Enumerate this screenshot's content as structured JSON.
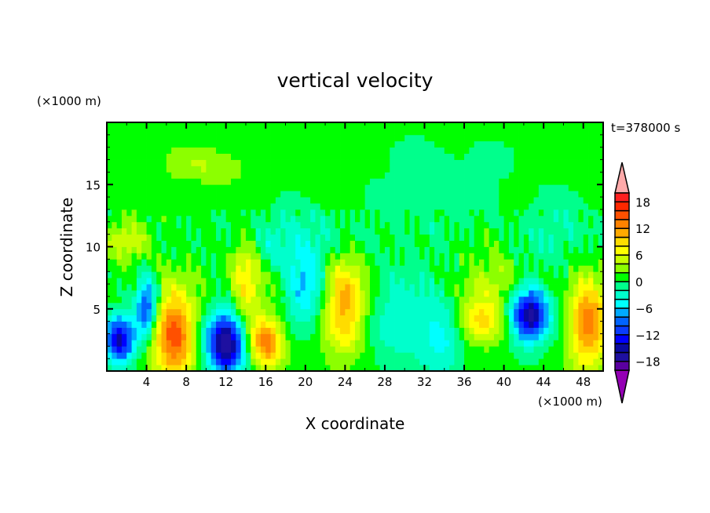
{
  "chart_data": {
    "type": "heatmap",
    "title": "vertical velocity",
    "xlabel": "X coordinate",
    "ylabel": "Z coordinate",
    "x_unit": "(×1000 m)",
    "y_unit": "(×1000 m)",
    "annotation": "t=378000 s",
    "xlim": [
      0,
      50
    ],
    "ylim": [
      0,
      20
    ],
    "x_ticks": [
      4,
      8,
      12,
      16,
      20,
      24,
      28,
      32,
      36,
      40,
      44,
      48
    ],
    "y_ticks": [
      5,
      10,
      15
    ],
    "colorbar": {
      "levels": [
        -20,
        -18,
        -16,
        -14,
        -12,
        -10,
        -8,
        -6,
        -4,
        -2,
        0,
        2,
        4,
        6,
        8,
        10,
        12,
        14,
        16,
        18,
        20
      ],
      "colors": [
        "#5a00a0",
        "#1e10a0",
        "#0a0aa0",
        "#0000ff",
        "#0a3cff",
        "#0064ff",
        "#00aaff",
        "#00ffff",
        "#00ffcc",
        "#00ff8c",
        "#00ff00",
        "#8cff00",
        "#c8ff00",
        "#ffff00",
        "#ffdc00",
        "#ffaa00",
        "#ff8200",
        "#ff5000",
        "#ff2800",
        "#ff2020"
      ],
      "over_color": "#ffaaaa",
      "under_color": "#9400b4",
      "tick_labels": [
        "18",
        "12",
        "6",
        "0",
        "−6",
        "−12",
        "−18"
      ],
      "tick_values": [
        18,
        12,
        6,
        0,
        -6,
        -12,
        -18
      ]
    },
    "field_features": [
      {
        "x": 1.3,
        "z": 2.5,
        "w": -15,
        "sx": 1.1,
        "sz": 1.4
      },
      {
        "x": 4.0,
        "z": 5.0,
        "w": -12,
        "sx": 0.8,
        "sz": 1.6
      },
      {
        "x": 6.8,
        "z": 2.8,
        "w": 14,
        "sx": 1.5,
        "sz": 2.6
      },
      {
        "x": 12.0,
        "z": 2.2,
        "w": -19,
        "sx": 1.4,
        "sz": 1.8
      },
      {
        "x": 16.0,
        "z": 2.2,
        "w": 12,
        "sx": 1.2,
        "sz": 1.5
      },
      {
        "x": 14.0,
        "z": 7.5,
        "w": 8,
        "sx": 1.1,
        "sz": 2.5
      },
      {
        "x": 24.0,
        "z": 5.5,
        "w": 10,
        "sx": 1.5,
        "sz": 3.0
      },
      {
        "x": 20.0,
        "z": 6.5,
        "w": -7,
        "sx": 1.3,
        "sz": 2.0
      },
      {
        "x": 37.5,
        "z": 4.0,
        "w": 8,
        "sx": 2.0,
        "sz": 1.2
      },
      {
        "x": 42.5,
        "z": 4.5,
        "w": -18,
        "sx": 1.4,
        "sz": 1.5
      },
      {
        "x": 48.5,
        "z": 4.0,
        "w": 12,
        "sx": 1.4,
        "sz": 2.6
      },
      {
        "x": 30.0,
        "z": 4.0,
        "w": -4,
        "sx": 3.0,
        "sz": 3.0
      },
      {
        "x": 34.0,
        "z": 3.0,
        "w": -5,
        "sx": 1.5,
        "sz": 2.0
      },
      {
        "x": 10.0,
        "z": 16.5,
        "w": 3,
        "sx": 3.0,
        "sz": 1.0
      },
      {
        "x": 19.0,
        "z": 10.5,
        "w": -4,
        "sx": 5.0,
        "sz": 1.8
      },
      {
        "x": 34.0,
        "z": 15.0,
        "w": -2,
        "sx": 5.0,
        "sz": 3.0
      },
      {
        "x": 2.0,
        "z": 10.5,
        "w": 4,
        "sx": 1.5,
        "sz": 1.2
      },
      {
        "x": 46.0,
        "z": 11.0,
        "w": -3,
        "sx": 3.0,
        "sz": 2.0
      },
      {
        "x": 39.0,
        "z": 7.0,
        "w": 4,
        "sx": 2.0,
        "sz": 1.5
      }
    ]
  }
}
